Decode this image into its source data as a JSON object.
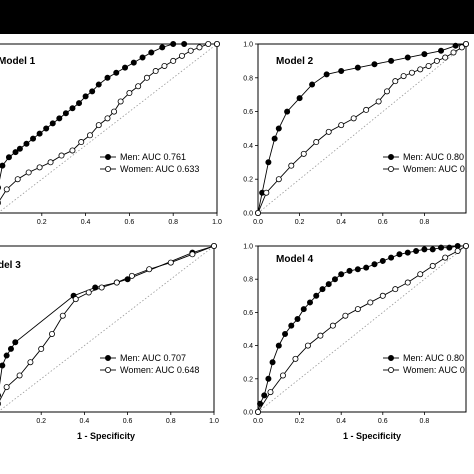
{
  "chart_data": [
    {
      "type": "line",
      "title": "Model 1",
      "xlabel": "",
      "ylabel": "",
      "xlim": [
        0,
        1
      ],
      "ylim": [
        0,
        1
      ],
      "x_ticks": [
        "0.2",
        "0.4",
        "0.6",
        "0.8",
        "1.0"
      ],
      "y_ticks": [],
      "reference_line": "diagonal",
      "series": [
        {
          "name": "Men: AUC 0.761",
          "marker": "filled",
          "x": [
            0,
            0.02,
            0.05,
            0.08,
            0.1,
            0.13,
            0.16,
            0.19,
            0.22,
            0.25,
            0.28,
            0.31,
            0.34,
            0.37,
            0.4,
            0.43,
            0.46,
            0.5,
            0.54,
            0.58,
            0.62,
            0.66,
            0.7,
            0.75,
            0.8,
            0.85,
            1.0
          ],
          "y": [
            0.15,
            0.28,
            0.33,
            0.36,
            0.38,
            0.41,
            0.44,
            0.47,
            0.5,
            0.53,
            0.56,
            0.59,
            0.62,
            0.65,
            0.69,
            0.72,
            0.76,
            0.8,
            0.83,
            0.86,
            0.89,
            0.92,
            0.95,
            0.98,
            1.0,
            1.0,
            1.0
          ]
        },
        {
          "name": "Women: AUC 0.633",
          "marker": "open",
          "x": [
            0,
            0.04,
            0.09,
            0.14,
            0.19,
            0.24,
            0.29,
            0.34,
            0.38,
            0.42,
            0.46,
            0.5,
            0.53,
            0.56,
            0.6,
            0.64,
            0.68,
            0.72,
            0.76,
            0.8,
            0.84,
            0.88,
            0.92,
            0.96,
            1.0
          ],
          "y": [
            0.06,
            0.14,
            0.2,
            0.24,
            0.27,
            0.3,
            0.34,
            0.37,
            0.42,
            0.46,
            0.52,
            0.56,
            0.6,
            0.66,
            0.71,
            0.75,
            0.8,
            0.84,
            0.87,
            0.9,
            0.93,
            0.96,
            0.98,
            1.0,
            1.0
          ]
        }
      ]
    },
    {
      "type": "line",
      "title": "Model 2",
      "xlabel": "",
      "ylabel": "",
      "xlim": [
        0,
        1
      ],
      "ylim": [
        0,
        1
      ],
      "x_ticks": [
        "0.0",
        "0.2",
        "0.4",
        "0.6",
        "0.8"
      ],
      "y_ticks": [
        "0.0",
        "0.2",
        "0.4",
        "0.6",
        "0.8",
        "1.0"
      ],
      "reference_line": "diagonal",
      "series": [
        {
          "name": "Men: AUC 0.80",
          "marker": "filled",
          "x": [
            0,
            0.02,
            0.05,
            0.08,
            0.1,
            0.14,
            0.2,
            0.26,
            0.33,
            0.4,
            0.48,
            0.56,
            0.64,
            0.72,
            0.8,
            0.88,
            0.95,
            1.0
          ],
          "y": [
            0.0,
            0.12,
            0.3,
            0.44,
            0.5,
            0.6,
            0.68,
            0.76,
            0.82,
            0.84,
            0.86,
            0.88,
            0.9,
            0.92,
            0.94,
            0.96,
            0.99,
            1.0
          ]
        },
        {
          "name": "Women: AUC 0.",
          "marker": "open",
          "x": [
            0,
            0.04,
            0.1,
            0.16,
            0.22,
            0.28,
            0.34,
            0.4,
            0.46,
            0.52,
            0.58,
            0.62,
            0.66,
            0.7,
            0.74,
            0.78,
            0.82,
            0.86,
            0.9,
            0.94,
            0.98,
            1.0
          ],
          "y": [
            0.0,
            0.12,
            0.2,
            0.28,
            0.35,
            0.42,
            0.48,
            0.52,
            0.56,
            0.61,
            0.66,
            0.72,
            0.78,
            0.81,
            0.83,
            0.85,
            0.87,
            0.9,
            0.92,
            0.95,
            0.98,
            1.0
          ]
        }
      ]
    },
    {
      "type": "line",
      "title": "del 3",
      "xlabel": "1 - Specificity",
      "ylabel": "",
      "xlim": [
        0,
        1
      ],
      "ylim": [
        0,
        1
      ],
      "x_ticks": [
        "0.2",
        "0.4",
        "0.6",
        "0.8",
        "1.0"
      ],
      "y_ticks": [],
      "reference_line": "diagonal",
      "series": [
        {
          "name": "Men: AUC 0.707",
          "marker": "filled",
          "x": [
            0,
            0.02,
            0.04,
            0.06,
            0.08,
            0.35,
            0.45,
            0.55,
            0.6,
            0.9,
            1.0
          ],
          "y": [
            0.1,
            0.28,
            0.34,
            0.38,
            0.42,
            0.7,
            0.75,
            0.78,
            0.8,
            0.96,
            1.0
          ]
        },
        {
          "name": "Women: AUC 0.648",
          "marker": "open",
          "x": [
            0,
            0.04,
            0.1,
            0.15,
            0.2,
            0.25,
            0.3,
            0.36,
            0.42,
            0.48,
            0.55,
            0.62,
            0.7,
            0.8,
            0.9,
            1.0
          ],
          "y": [
            0.05,
            0.15,
            0.22,
            0.3,
            0.38,
            0.47,
            0.58,
            0.68,
            0.72,
            0.75,
            0.78,
            0.82,
            0.86,
            0.9,
            0.95,
            1.0
          ]
        }
      ]
    },
    {
      "type": "line",
      "title": "Model 4",
      "xlabel": "1 - Specificity",
      "ylabel": "",
      "xlim": [
        0,
        1
      ],
      "ylim": [
        0,
        1
      ],
      "x_ticks": [
        "0.0",
        "0.2",
        "0.4",
        "0.6",
        "0.8"
      ],
      "y_ticks": [
        "0.0",
        "0.2",
        "0.4",
        "0.6",
        "0.8",
        "1.0"
      ],
      "reference_line": "diagonal",
      "series": [
        {
          "name": "Men: AUC 0.80",
          "marker": "filled",
          "x": [
            0,
            0.01,
            0.03,
            0.05,
            0.07,
            0.1,
            0.13,
            0.16,
            0.19,
            0.22,
            0.25,
            0.28,
            0.31,
            0.34,
            0.37,
            0.4,
            0.44,
            0.48,
            0.52,
            0.56,
            0.6,
            0.64,
            0.68,
            0.72,
            0.76,
            0.8,
            0.84,
            0.88,
            0.92,
            0.96,
            1.0
          ],
          "y": [
            0.0,
            0.05,
            0.1,
            0.2,
            0.3,
            0.4,
            0.47,
            0.52,
            0.56,
            0.62,
            0.66,
            0.7,
            0.74,
            0.77,
            0.8,
            0.83,
            0.85,
            0.86,
            0.87,
            0.89,
            0.91,
            0.93,
            0.95,
            0.96,
            0.97,
            0.98,
            0.98,
            0.99,
            0.99,
            1.0,
            1.0
          ]
        },
        {
          "name": "Women: AUC 0.",
          "marker": "open",
          "x": [
            0,
            0.06,
            0.12,
            0.18,
            0.24,
            0.3,
            0.36,
            0.42,
            0.48,
            0.54,
            0.6,
            0.66,
            0.72,
            0.78,
            0.84,
            0.9,
            0.96,
            1.0
          ],
          "y": [
            0.0,
            0.12,
            0.22,
            0.32,
            0.4,
            0.46,
            0.52,
            0.58,
            0.62,
            0.66,
            0.7,
            0.74,
            0.78,
            0.83,
            0.88,
            0.93,
            0.97,
            1.0
          ]
        }
      ]
    }
  ]
}
